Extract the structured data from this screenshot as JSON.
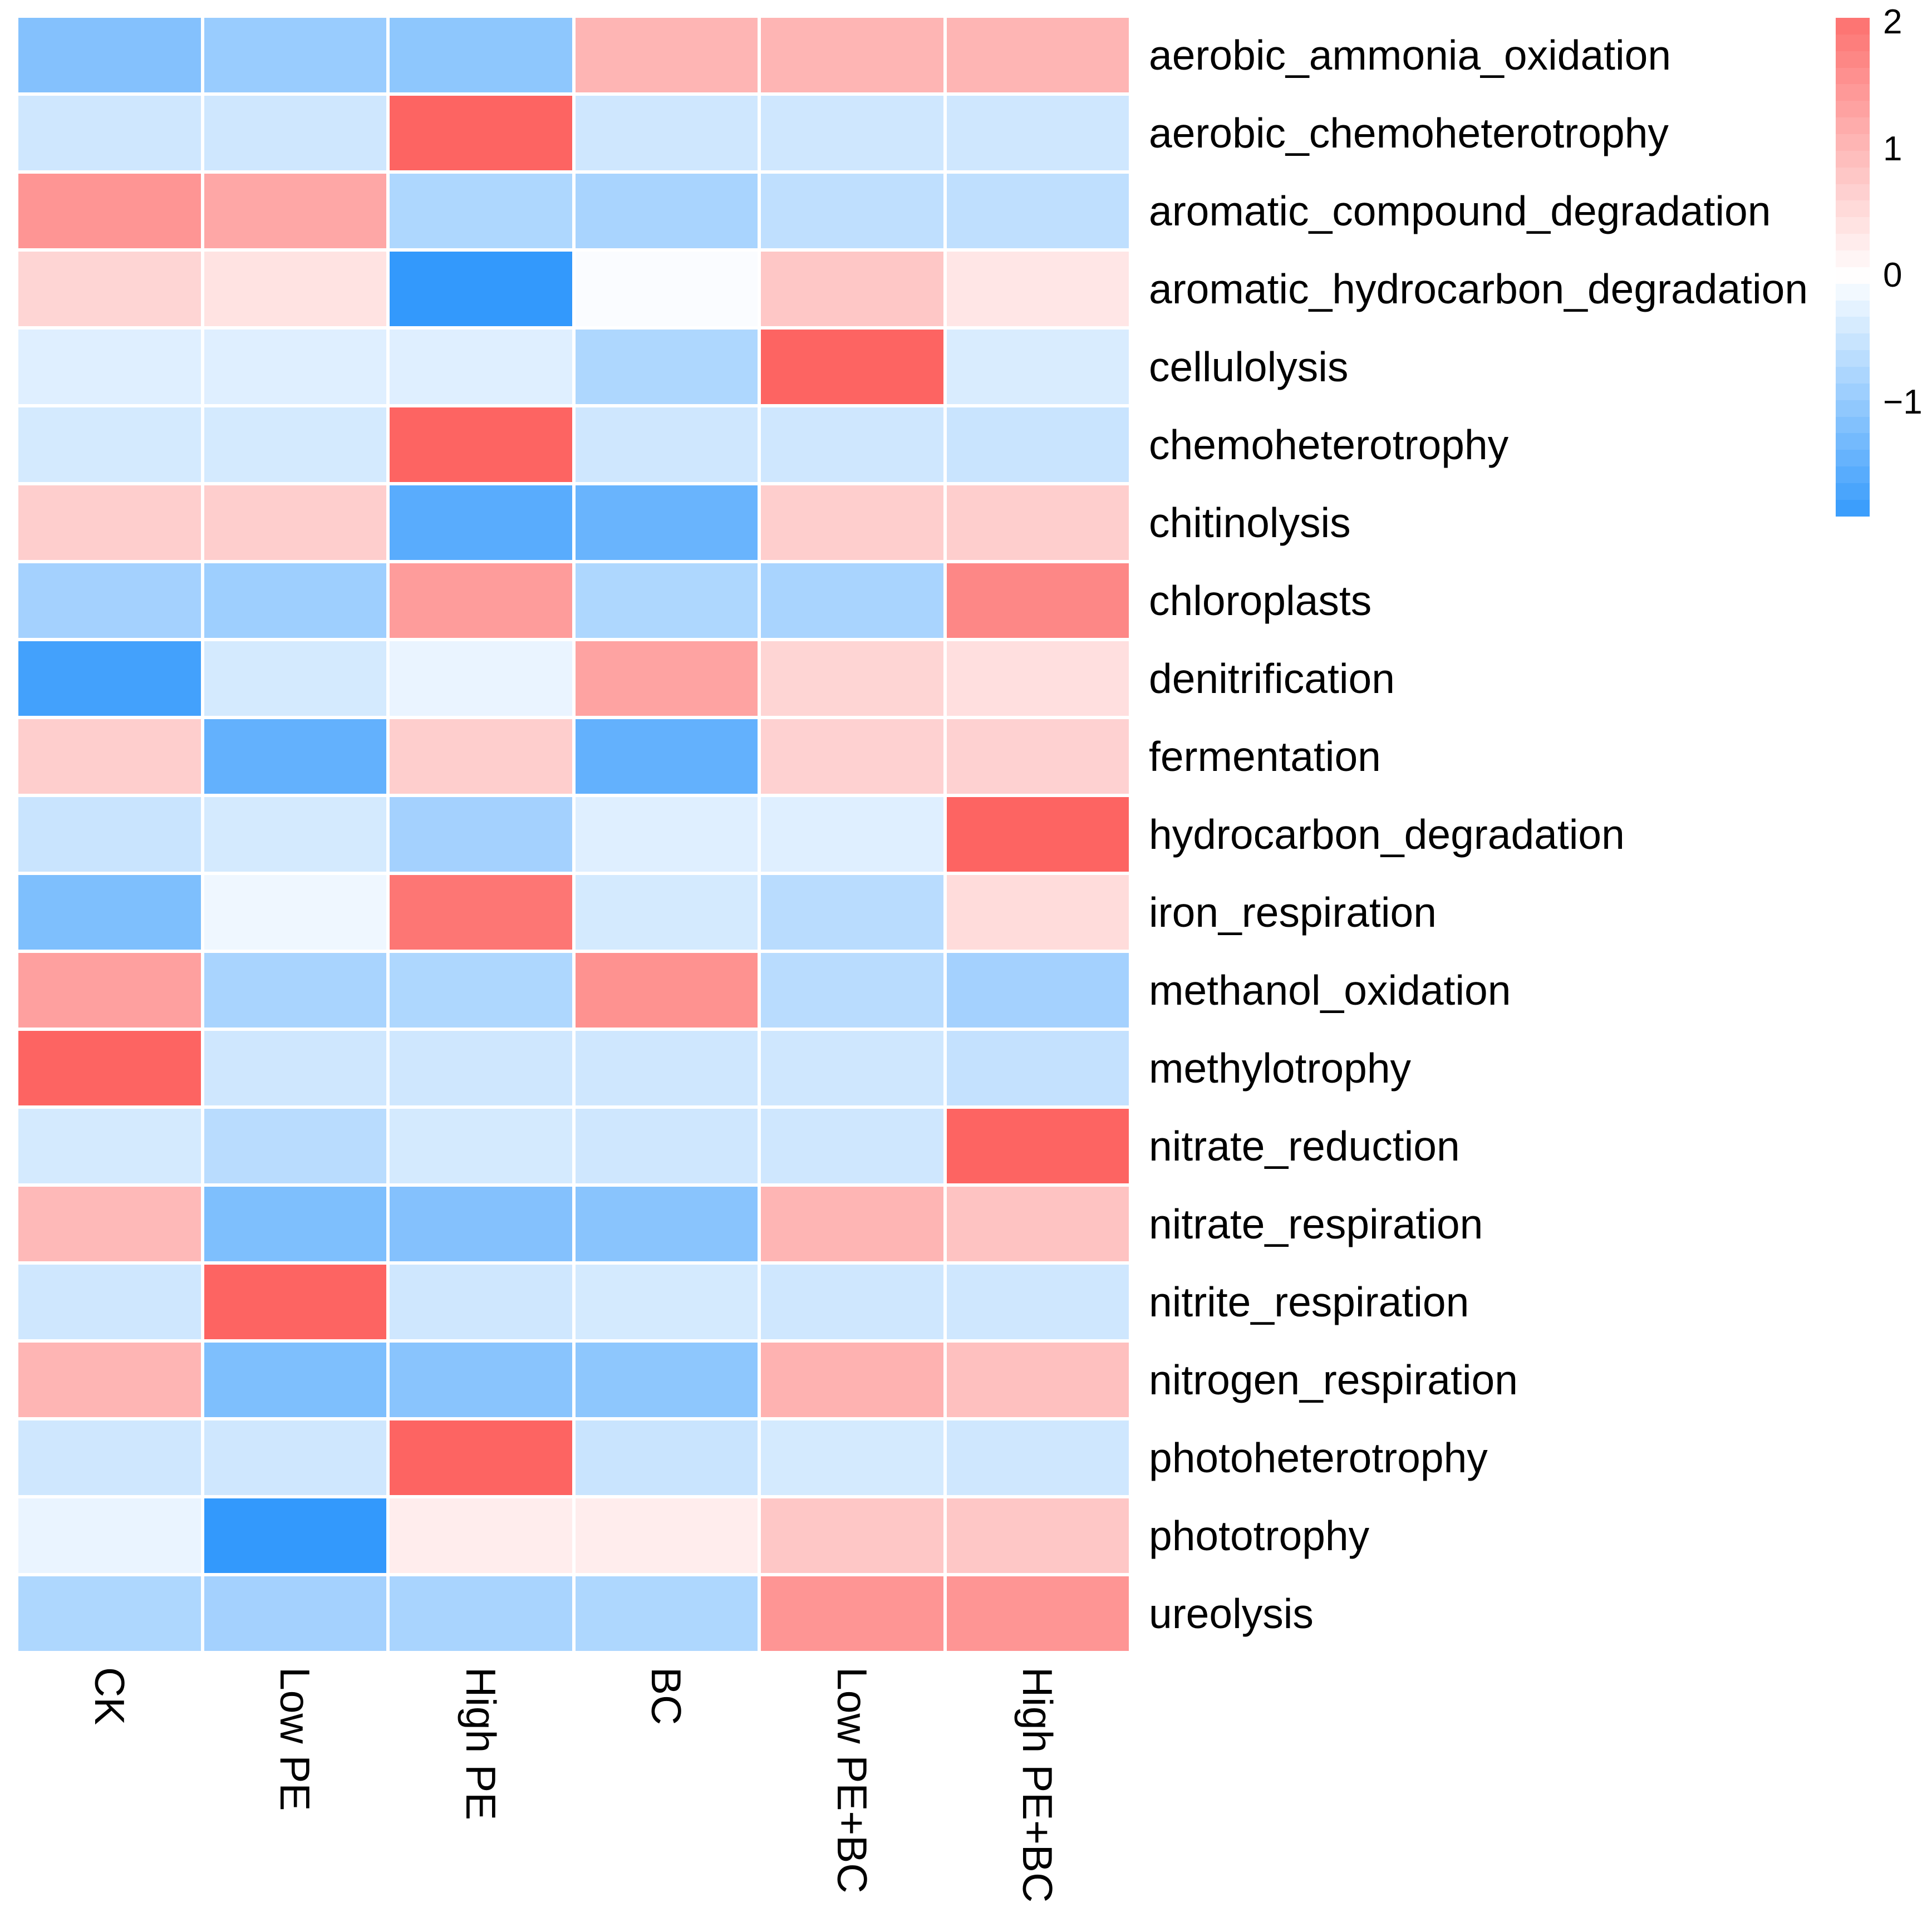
{
  "chart_data": {
    "type": "heatmap",
    "columns": [
      "CK",
      "Low PE",
      "High PE",
      "BC",
      "Low PE+BC",
      "High PE+BC"
    ],
    "rows": [
      "aerobic_ammonia_oxidation",
      "aerobic_chemoheterotrophy",
      "aromatic_compound_degradation",
      "aromatic_hydrocarbon_degradation",
      "cellulolysis",
      "chemoheterotrophy",
      "chitinolysis",
      "chloroplasts",
      "denitrification",
      "fermentation",
      "hydrocarbon_degradation",
      "iron_respiration",
      "methanol_oxidation",
      "methylotrophy",
      "nitrate_reduction",
      "nitrate_respiration",
      "nitrite_respiration",
      "nitrogen_respiration",
      "photoheterotrophy",
      "phototrophy",
      "ureolysis"
    ],
    "values": [
      [
        -1.15,
        -0.95,
        -1.05,
        1.05,
        1.05,
        1.05
      ],
      [
        -0.45,
        -0.45,
        2.2,
        -0.45,
        -0.45,
        -0.45
      ],
      [
        1.5,
        1.25,
        -0.75,
        -0.8,
        -0.6,
        -0.6
      ],
      [
        0.6,
        0.4,
        -1.9,
        -0.05,
        0.8,
        0.35
      ],
      [
        -0.3,
        -0.3,
        -0.3,
        -0.75,
        2.2,
        -0.35
      ],
      [
        -0.4,
        -0.4,
        2.2,
        -0.45,
        -0.45,
        -0.5
      ],
      [
        0.7,
        0.7,
        -1.55,
        -1.4,
        0.7,
        0.7
      ],
      [
        -0.85,
        -0.9,
        1.4,
        -0.75,
        -0.8,
        1.7
      ],
      [
        -1.75,
        -0.4,
        -0.2,
        1.3,
        0.6,
        0.45
      ],
      [
        0.7,
        -1.45,
        0.7,
        -1.45,
        0.65,
        0.65
      ],
      [
        -0.5,
        -0.4,
        -0.85,
        -0.3,
        -0.3,
        2.2
      ],
      [
        -1.2,
        -0.15,
        1.95,
        -0.4,
        -0.65,
        0.5
      ],
      [
        1.35,
        -0.8,
        -0.75,
        1.55,
        -0.65,
        -0.85
      ],
      [
        2.2,
        -0.45,
        -0.45,
        -0.45,
        -0.45,
        -0.55
      ],
      [
        -0.4,
        -0.65,
        -0.4,
        -0.45,
        -0.45,
        2.2
      ],
      [
        1.0,
        -1.2,
        -1.15,
        -1.1,
        1.05,
        0.85
      ],
      [
        -0.45,
        2.2,
        -0.45,
        -0.4,
        -0.45,
        -0.45
      ],
      [
        1.05,
        -1.2,
        -1.1,
        -1.05,
        1.1,
        0.9
      ],
      [
        -0.45,
        -0.45,
        2.2,
        -0.5,
        -0.4,
        -0.45
      ],
      [
        -0.2,
        -1.9,
        0.25,
        0.25,
        0.8,
        0.8
      ],
      [
        -0.75,
        -0.85,
        -0.8,
        -0.75,
        1.5,
        1.5
      ]
    ],
    "color_scale": {
      "type": "diverging",
      "high_color": "#FD6462",
      "mid_color": "#FFFFFF",
      "low_color": "#3399FC",
      "domain": [
        -1.9,
        0,
        2.2
      ],
      "legend_ticks": [
        "2",
        "1",
        "0",
        "−1"
      ],
      "legend_tick_values": [
        2,
        1,
        0,
        -1
      ],
      "legend_range_top": 2.03,
      "legend_range_bottom": -1.88,
      "legend_position": "top-right"
    },
    "title": "",
    "xlabel": "",
    "ylabel": "",
    "grid": false
  }
}
